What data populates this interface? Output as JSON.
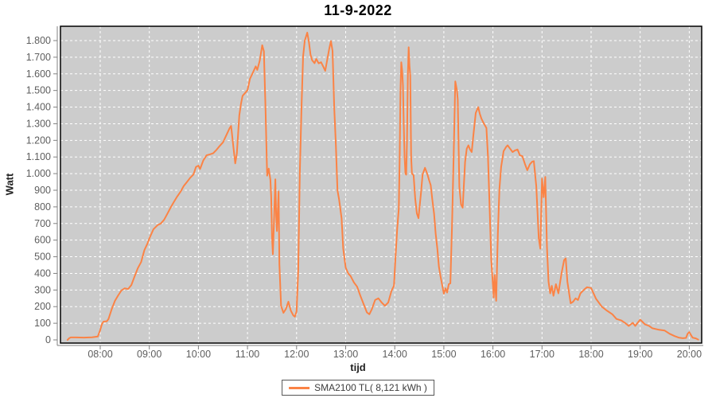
{
  "colors": {
    "background": "#ffffff",
    "plot_background": "#cccccc",
    "grid": "#ffffff",
    "series": "#fb8345",
    "axis": "#808080",
    "tick_label": "#5e5e5e",
    "plot_border": "#000000",
    "legend_border": "#555555",
    "legend_background": "#ffffff"
  },
  "chart_data": {
    "type": "line",
    "title": "11-9-2022",
    "xlabel": "tijd",
    "ylabel": "Watt",
    "grid": "white dashed, on",
    "x_ticks": [
      "08:00",
      "09:00",
      "10:00",
      "11:00",
      "12:00",
      "13:00",
      "14:00",
      "15:00",
      "16:00",
      "17:00",
      "18:00",
      "19:00",
      "20:00"
    ],
    "y_ticks": [
      {
        "label": "0",
        "value": 0
      },
      {
        "label": "100",
        "value": 100
      },
      {
        "label": "200",
        "value": 200
      },
      {
        "label": "300",
        "value": 300
      },
      {
        "label": "400",
        "value": 400
      },
      {
        "label": "500",
        "value": 500
      },
      {
        "label": "600",
        "value": 600
      },
      {
        "label": "700",
        "value": 700
      },
      {
        "label": "800",
        "value": 800
      },
      {
        "label": "900",
        "value": 900
      },
      {
        "label": "1.000",
        "value": 1000
      },
      {
        "label": "1.100",
        "value": 1100
      },
      {
        "label": "1.200",
        "value": 1200
      },
      {
        "label": "1.300",
        "value": 1300
      },
      {
        "label": "1.400",
        "value": 1400
      },
      {
        "label": "1.500",
        "value": 1500
      },
      {
        "label": "1.600",
        "value": 1600
      },
      {
        "label": "1.700",
        "value": 1700
      },
      {
        "label": "1.800",
        "value": 1800
      }
    ],
    "ylim": [
      0,
      1860
    ],
    "xlim_minutes": [
      431,
      1215
    ],
    "legend": {
      "position": "bottom-center",
      "entries": [
        {
          "label": "SMA2100 TL( 8,121 kWh )",
          "color": "#fb8345"
        }
      ]
    },
    "series": [
      {
        "name": "SMA2100 TL( 8,121 kWh )",
        "color": "#fb8345",
        "points": [
          [
            "07:20",
            0
          ],
          [
            "07:22",
            10
          ],
          [
            "07:24",
            15
          ],
          [
            "07:30",
            15
          ],
          [
            "07:40",
            14
          ],
          [
            "07:50",
            16
          ],
          [
            "07:57",
            20
          ],
          [
            "08:00",
            60
          ],
          [
            "08:02",
            95
          ],
          [
            "08:04",
            110
          ],
          [
            "08:08",
            112
          ],
          [
            "08:10",
            125
          ],
          [
            "08:14",
            185
          ],
          [
            "08:18",
            235
          ],
          [
            "08:22",
            268
          ],
          [
            "08:26",
            298
          ],
          [
            "08:30",
            310
          ],
          [
            "08:34",
            306
          ],
          [
            "08:38",
            330
          ],
          [
            "08:42",
            382
          ],
          [
            "08:46",
            432
          ],
          [
            "08:50",
            468
          ],
          [
            "08:54",
            540
          ],
          [
            "08:58",
            582
          ],
          [
            "09:00",
            610
          ],
          [
            "09:05",
            665
          ],
          [
            "09:10",
            690
          ],
          [
            "09:14",
            700
          ],
          [
            "09:18",
            722
          ],
          [
            "09:22",
            758
          ],
          [
            "09:26",
            795
          ],
          [
            "09:30",
            830
          ],
          [
            "09:34",
            862
          ],
          [
            "09:38",
            890
          ],
          [
            "09:42",
            925
          ],
          [
            "09:46",
            950
          ],
          [
            "09:50",
            975
          ],
          [
            "09:54",
            995
          ],
          [
            "09:57",
            1040
          ],
          [
            "10:00",
            1048
          ],
          [
            "10:02",
            1028
          ],
          [
            "10:06",
            1080
          ],
          [
            "10:10",
            1110
          ],
          [
            "10:14",
            1116
          ],
          [
            "10:18",
            1122
          ],
          [
            "10:22",
            1142
          ],
          [
            "10:26",
            1166
          ],
          [
            "10:30",
            1188
          ],
          [
            "10:34",
            1230
          ],
          [
            "10:38",
            1272
          ],
          [
            "10:40",
            1287
          ],
          [
            "10:43",
            1150
          ],
          [
            "10:45",
            1062
          ],
          [
            "10:47",
            1120
          ],
          [
            "10:50",
            1350
          ],
          [
            "10:52",
            1420
          ],
          [
            "10:54",
            1468
          ],
          [
            "10:58",
            1490
          ],
          [
            "11:00",
            1502
          ],
          [
            "11:03",
            1570
          ],
          [
            "11:07",
            1612
          ],
          [
            "11:10",
            1645
          ],
          [
            "11:12",
            1624
          ],
          [
            "11:15",
            1680
          ],
          [
            "11:18",
            1772
          ],
          [
            "11:20",
            1736
          ],
          [
            "11:22",
            1400
          ],
          [
            "11:24",
            988
          ],
          [
            "11:26",
            1030
          ],
          [
            "11:28",
            962
          ],
          [
            "11:29",
            858
          ],
          [
            "11:30",
            620
          ],
          [
            "11:31",
            515
          ],
          [
            "11:33",
            800
          ],
          [
            "11:34",
            966
          ],
          [
            "11:35",
            748
          ],
          [
            "11:36",
            655
          ],
          [
            "11:38",
            893
          ],
          [
            "11:39",
            455
          ],
          [
            "11:41",
            205
          ],
          [
            "11:44",
            163
          ],
          [
            "11:47",
            186
          ],
          [
            "11:50",
            230
          ],
          [
            "11:53",
            175
          ],
          [
            "11:56",
            147
          ],
          [
            "11:58",
            140
          ],
          [
            "12:00",
            172
          ],
          [
            "12:02",
            420
          ],
          [
            "12:04",
            1010
          ],
          [
            "12:06",
            1400
          ],
          [
            "12:08",
            1705
          ],
          [
            "12:10",
            1800
          ],
          [
            "12:13",
            1848
          ],
          [
            "12:15",
            1795
          ],
          [
            "12:17",
            1716
          ],
          [
            "12:19",
            1682
          ],
          [
            "12:22",
            1664
          ],
          [
            "12:24",
            1690
          ],
          [
            "12:27",
            1663
          ],
          [
            "12:30",
            1670
          ],
          [
            "12:33",
            1640
          ],
          [
            "12:35",
            1618
          ],
          [
            "12:38",
            1700
          ],
          [
            "12:40",
            1752
          ],
          [
            "12:42",
            1797
          ],
          [
            "12:44",
            1738
          ],
          [
            "12:46",
            1400
          ],
          [
            "12:48",
            1170
          ],
          [
            "12:50",
            900
          ],
          [
            "12:52",
            842
          ],
          [
            "12:55",
            730
          ],
          [
            "12:57",
            550
          ],
          [
            "13:00",
            435
          ],
          [
            "13:03",
            400
          ],
          [
            "13:06",
            384
          ],
          [
            "13:10",
            346
          ],
          [
            "13:14",
            320
          ],
          [
            "13:18",
            265
          ],
          [
            "13:22",
            215
          ],
          [
            "13:26",
            165
          ],
          [
            "13:29",
            154
          ],
          [
            "13:32",
            185
          ],
          [
            "13:36",
            240
          ],
          [
            "13:40",
            250
          ],
          [
            "13:44",
            225
          ],
          [
            "13:48",
            205
          ],
          [
            "13:52",
            225
          ],
          [
            "13:56",
            295
          ],
          [
            "13:59",
            326
          ],
          [
            "14:01",
            500
          ],
          [
            "14:03",
            670
          ],
          [
            "14:05",
            790
          ],
          [
            "14:06",
            1100
          ],
          [
            "14:07",
            1500
          ],
          [
            "14:08",
            1670
          ],
          [
            "14:09",
            1620
          ],
          [
            "14:10",
            1530
          ],
          [
            "14:11",
            1300
          ],
          [
            "14:12",
            1110
          ],
          [
            "14:13",
            1000
          ],
          [
            "14:14",
            994
          ],
          [
            "14:15",
            1200
          ],
          [
            "14:16",
            1600
          ],
          [
            "14:17",
            1760
          ],
          [
            "14:18",
            1650
          ],
          [
            "14:19",
            1590
          ],
          [
            "14:20",
            1100
          ],
          [
            "14:21",
            1000
          ],
          [
            "14:23",
            990
          ],
          [
            "14:25",
            850
          ],
          [
            "14:27",
            760
          ],
          [
            "14:29",
            732
          ],
          [
            "14:32",
            880
          ],
          [
            "14:34",
            995
          ],
          [
            "14:37",
            1035
          ],
          [
            "14:40",
            995
          ],
          [
            "14:42",
            960
          ],
          [
            "14:44",
            930
          ],
          [
            "14:46",
            840
          ],
          [
            "14:48",
            760
          ],
          [
            "14:50",
            640
          ],
          [
            "14:52",
            550
          ],
          [
            "14:54",
            440
          ],
          [
            "14:56",
            380
          ],
          [
            "14:58",
            330
          ],
          [
            "15:00",
            278
          ],
          [
            "15:02",
            310
          ],
          [
            "15:04",
            285
          ],
          [
            "15:06",
            335
          ],
          [
            "15:08",
            340
          ],
          [
            "15:10",
            690
          ],
          [
            "15:12",
            1100
          ],
          [
            "15:14",
            1555
          ],
          [
            "15:16",
            1500
          ],
          [
            "15:17",
            1445
          ],
          [
            "15:19",
            920
          ],
          [
            "15:21",
            815
          ],
          [
            "15:23",
            795
          ],
          [
            "15:26",
            1070
          ],
          [
            "15:28",
            1150
          ],
          [
            "15:30",
            1170
          ],
          [
            "15:32",
            1145
          ],
          [
            "15:34",
            1130
          ],
          [
            "15:36",
            1225
          ],
          [
            "15:39",
            1365
          ],
          [
            "15:42",
            1400
          ],
          [
            "15:44",
            1360
          ],
          [
            "15:46",
            1330
          ],
          [
            "15:49",
            1300
          ],
          [
            "15:52",
            1275
          ],
          [
            "15:54",
            1100
          ],
          [
            "15:56",
            790
          ],
          [
            "15:58",
            480
          ],
          [
            "16:00",
            330
          ],
          [
            "16:01",
            255
          ],
          [
            "16:02",
            390
          ],
          [
            "16:04",
            235
          ],
          [
            "16:06",
            640
          ],
          [
            "16:08",
            910
          ],
          [
            "16:10",
            1040
          ],
          [
            "16:13",
            1135
          ],
          [
            "16:16",
            1160
          ],
          [
            "16:18",
            1170
          ],
          [
            "16:21",
            1150
          ],
          [
            "16:24",
            1130
          ],
          [
            "16:27",
            1140
          ],
          [
            "16:30",
            1145
          ],
          [
            "16:33",
            1110
          ],
          [
            "16:36",
            1105
          ],
          [
            "16:39",
            1060
          ],
          [
            "16:42",
            1020
          ],
          [
            "16:45",
            1055
          ],
          [
            "16:48",
            1072
          ],
          [
            "16:50",
            1075
          ],
          [
            "16:53",
            925
          ],
          [
            "16:56",
            610
          ],
          [
            "16:58",
            548
          ],
          [
            "17:00",
            970
          ],
          [
            "17:02",
            858
          ],
          [
            "17:04",
            980
          ],
          [
            "17:06",
            560
          ],
          [
            "17:08",
            350
          ],
          [
            "17:10",
            280
          ],
          [
            "17:12",
            325
          ],
          [
            "17:14",
            265
          ],
          [
            "17:17",
            335
          ],
          [
            "17:20",
            280
          ],
          [
            "17:24",
            405
          ],
          [
            "17:27",
            480
          ],
          [
            "17:29",
            490
          ],
          [
            "17:31",
            350
          ],
          [
            "17:35",
            220
          ],
          [
            "17:38",
            230
          ],
          [
            "17:41",
            250
          ],
          [
            "17:44",
            240
          ],
          [
            "17:47",
            280
          ],
          [
            "17:52",
            305
          ],
          [
            "17:55",
            317
          ],
          [
            "18:00",
            312
          ],
          [
            "18:06",
            247
          ],
          [
            "18:13",
            200
          ],
          [
            "18:19",
            177
          ],
          [
            "18:26",
            154
          ],
          [
            "18:31",
            126
          ],
          [
            "18:37",
            117
          ],
          [
            "18:42",
            100
          ],
          [
            "18:46",
            84
          ],
          [
            "18:51",
            103
          ],
          [
            "18:54",
            84
          ],
          [
            "19:00",
            122
          ],
          [
            "19:06",
            93
          ],
          [
            "19:11",
            84
          ],
          [
            "19:15",
            70
          ],
          [
            "19:23",
            61
          ],
          [
            "19:30",
            56
          ],
          [
            "19:36",
            37
          ],
          [
            "19:42",
            23
          ],
          [
            "19:47",
            14
          ],
          [
            "19:52",
            10
          ],
          [
            "19:56",
            12
          ],
          [
            "19:58",
            37
          ],
          [
            "20:00",
            47
          ],
          [
            "20:04",
            14
          ],
          [
            "20:08",
            9
          ],
          [
            "20:11",
            2
          ]
        ]
      }
    ]
  }
}
